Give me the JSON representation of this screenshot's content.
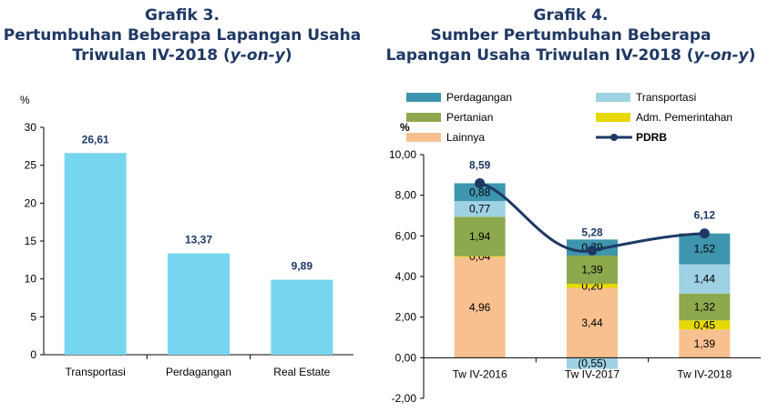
{
  "chart_data": [
    {
      "type": "bar",
      "title": [
        "Grafik 3.",
        "Pertumbuhan Beberapa Lapangan Usaha",
        "Triwulan IV-2018 ("
      ],
      "title_italic": "y-on-y",
      "title_suffix": ")",
      "ylabel": "%",
      "ylim": [
        0,
        30
      ],
      "yticks": [
        "0",
        "5",
        "10",
        "15",
        "20",
        "25",
        "30"
      ],
      "categories": [
        "Transportasi",
        "Perdagangan",
        "Real Estate"
      ],
      "values": [
        26.61,
        13.37,
        9.89
      ],
      "value_labels": [
        "26,61",
        "13,37",
        "9,89"
      ],
      "bar_color": "#76d6f0",
      "label_color": "#1f3864"
    },
    {
      "type": "bar",
      "stacked": true,
      "title": [
        "Grafik 4.",
        "Sumber Pertumbuhan Beberapa",
        "Lapangan Usaha Triwulan IV-2018 ("
      ],
      "title_italic": "y-on-y",
      "title_suffix": ")",
      "ylabel": "%",
      "ylim": [
        -2,
        10
      ],
      "yticks": [
        "-2,00",
        "0,00",
        "2,00",
        "4,00",
        "6,00",
        "8,00",
        "10,00"
      ],
      "categories": [
        "Tw IV-2016",
        "Tw IV-2017",
        "Tw IV-2018"
      ],
      "series": [
        {
          "name": "Lainnya",
          "color": "#f9c08f",
          "values": [
            4.96,
            3.44,
            1.39
          ],
          "labels": [
            "4,96",
            "3,44",
            "1,39"
          ]
        },
        {
          "name": "Adm. Pemerintahan",
          "color": "#e6d800",
          "values": [
            0.04,
            0.2,
            0.45
          ],
          "labels": [
            "0,04",
            "0,20",
            "0,45"
          ]
        },
        {
          "name": "Pertanian",
          "color": "#8ea94d",
          "values": [
            1.94,
            1.39,
            1.32
          ],
          "labels": [
            "1,94",
            "1,39",
            "1,32"
          ]
        },
        {
          "name": "Transportasi",
          "color": "#9dd1e3",
          "values": [
            0.77,
            -0.55,
            1.44
          ],
          "labels": [
            "0,77",
            "(0,55)",
            "1,44"
          ]
        },
        {
          "name": "Perdagangan",
          "color": "#3e95ae",
          "values": [
            0.88,
            0.79,
            1.52
          ],
          "labels": [
            "0,88",
            "0,79",
            "1,52"
          ]
        }
      ],
      "line": {
        "name": "PDRB",
        "color": "#1f3864",
        "values": [
          8.59,
          5.28,
          6.12
        ],
        "labels": [
          "8,59",
          "5,28",
          "6,12"
        ]
      },
      "legend": [
        "Perdagangan",
        "Transportasi",
        "Pertanian",
        "Adm. Pemerintahan",
        "Lainnya",
        "PDRB"
      ],
      "legend_position": "top"
    }
  ]
}
